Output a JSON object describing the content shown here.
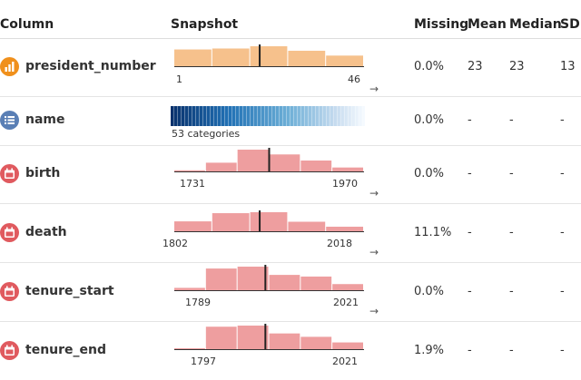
{
  "header": {
    "column": "Column",
    "snapshot": "Snapshot",
    "missing": "Missing",
    "mean": "Mean",
    "median": "Median",
    "sd": "SD"
  },
  "colors": {
    "numeric_bar": "#f6c18c",
    "date_bar": "#ee9e9f",
    "numeric_icon": "#f0901c",
    "categorical_icon": "#5a7fb5",
    "date_icon": "#e05a5f",
    "marker": "#222222"
  },
  "rows": [
    {
      "name": "president_number",
      "type": "numeric",
      "icon": "bar-chart-icon",
      "hist": [
        0.52,
        0.55,
        0.62,
        0.48,
        0.33
      ],
      "marker": 0.45,
      "tick_min": "1",
      "tick_max": "46",
      "missing": "0.0%",
      "mean": "23",
      "median": "23",
      "sd": "13"
    },
    {
      "name": "name",
      "type": "categorical",
      "icon": "list-icon",
      "categories_label": "53 categories",
      "missing": "0.0%",
      "mean": "-",
      "median": "-",
      "sd": "-"
    },
    {
      "name": "birth",
      "type": "date",
      "icon": "calendar-icon",
      "hist": [
        0.05,
        0.4,
        1.0,
        0.78,
        0.5,
        0.18
      ],
      "marker": 0.5,
      "tick_min": "1731",
      "tick_max": "1970",
      "missing": "0.0%",
      "mean": "-",
      "median": "-",
      "sd": "-"
    },
    {
      "name": "death",
      "type": "date",
      "icon": "calendar-icon",
      "hist": [
        0.52,
        0.95,
        1.0,
        0.5,
        0.24
      ],
      "marker": 0.45,
      "tick_min": "1802",
      "tick_max": "2018",
      "missing": "11.1%",
      "mean": "-",
      "median": "-",
      "sd": "-"
    },
    {
      "name": "tenure_start",
      "type": "date",
      "icon": "calendar-icon",
      "hist": [
        0.1,
        0.92,
        1.0,
        0.65,
        0.58,
        0.26
      ],
      "marker": 0.48,
      "tick_min": "1789",
      "tick_max": "2021",
      "missing": "0.0%",
      "mean": "-",
      "median": "-",
      "sd": "-"
    },
    {
      "name": "tenure_end",
      "type": "date",
      "icon": "calendar-icon",
      "hist": [
        0.02,
        1.0,
        1.05,
        0.7,
        0.55,
        0.3
      ],
      "marker": 0.48,
      "tick_min": "1797",
      "tick_max": "2021",
      "missing": "1.9%",
      "mean": "-",
      "median": "-",
      "sd": "-"
    }
  ]
}
